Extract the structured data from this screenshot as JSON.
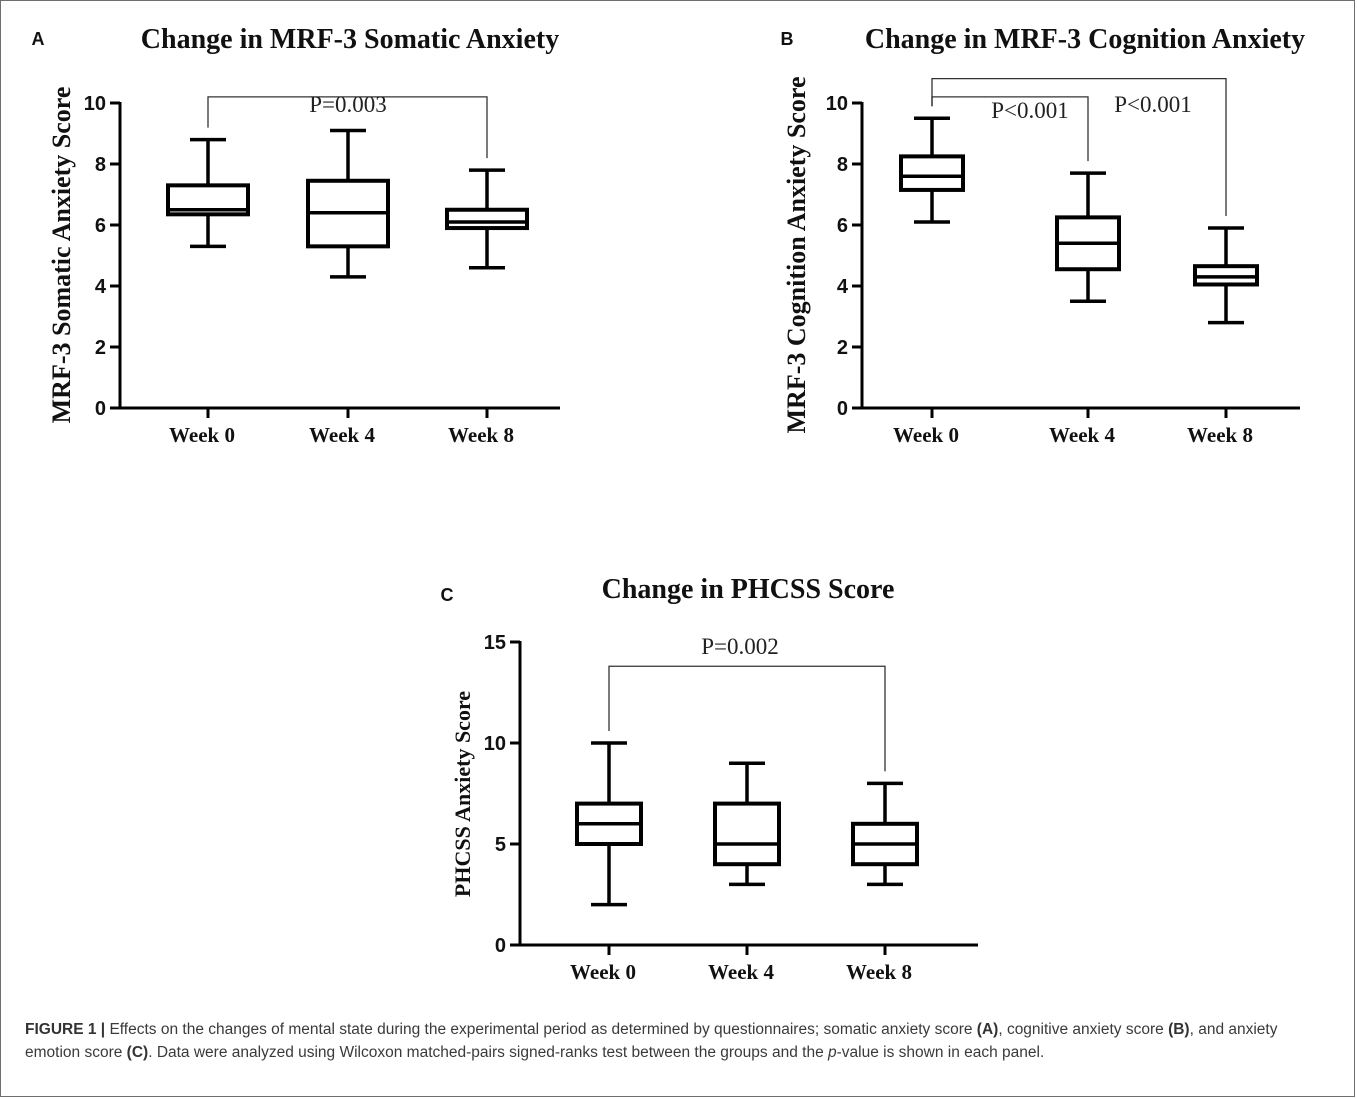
{
  "chart_data": [
    {
      "panel": "A",
      "type": "box",
      "title": "Change in MRF-3 Somatic Anxiety",
      "ylabel": "MRF-3 Somatic Anxiety Score",
      "xlabel": "",
      "ylim": [
        0,
        10
      ],
      "yticks": [
        0,
        2,
        4,
        6,
        8,
        10
      ],
      "categories": [
        "Week 0",
        "Week 4",
        "Week 8"
      ],
      "boxes": [
        {
          "min": 5.3,
          "q1": 6.35,
          "median": 6.5,
          "q3": 7.3,
          "max": 8.8
        },
        {
          "min": 4.3,
          "q1": 5.3,
          "median": 6.4,
          "q3": 7.45,
          "max": 9.1
        },
        {
          "min": 4.6,
          "q1": 5.9,
          "median": 6.1,
          "q3": 6.5,
          "max": 7.8
        }
      ],
      "annotations": [
        {
          "from": 0,
          "to": 2,
          "level": 10.2,
          "label": "P=0.003"
        }
      ]
    },
    {
      "panel": "B",
      "type": "box",
      "title": "Change in MRF-3 Cognition Anxiety",
      "ylabel": "MRF-3 Cognition Anxiety Score",
      "xlabel": "",
      "ylim": [
        0,
        10
      ],
      "yticks": [
        0,
        2,
        4,
        6,
        8,
        10
      ],
      "categories": [
        "Week 0",
        "Week 4",
        "Week 8"
      ],
      "boxes": [
        {
          "min": 6.1,
          "q1": 7.15,
          "median": 7.6,
          "q3": 8.25,
          "max": 9.5
        },
        {
          "min": 3.5,
          "q1": 4.55,
          "median": 5.4,
          "q3": 6.25,
          "max": 7.7
        },
        {
          "min": 2.8,
          "q1": 4.05,
          "median": 4.3,
          "q3": 4.65,
          "max": 5.9
        }
      ],
      "annotations": [
        {
          "from": 0,
          "to": 1,
          "level": 10.2,
          "label": "P<0.001"
        },
        {
          "from": 0,
          "to": 2,
          "level": 10.8,
          "label": "P<0.001"
        }
      ]
    },
    {
      "panel": "C",
      "type": "box",
      "title": "Change in PHCSS Score",
      "ylabel": "PHCSS Anxiety Score",
      "xlabel": "",
      "ylim": [
        0,
        15
      ],
      "yticks": [
        0,
        5,
        10,
        15
      ],
      "categories": [
        "Week 0",
        "Week 4",
        "Week 8"
      ],
      "boxes": [
        {
          "min": 2,
          "q1": 5,
          "median": 6,
          "q3": 7,
          "max": 10
        },
        {
          "min": 3,
          "q1": 4,
          "median": 5,
          "q3": 7,
          "max": 9
        },
        {
          "min": 3,
          "q1": 4,
          "median": 5,
          "q3": 6,
          "max": 8
        }
      ],
      "annotations": [
        {
          "from": 0,
          "to": 2,
          "level": 13.8,
          "label": "P=0.002"
        }
      ]
    }
  ],
  "caption": {
    "label": "FIGURE 1 |",
    "text_1": " Effects on the changes of mental state during the experimental period as determined by questionnaires; somatic anxiety score ",
    "ref_a": "(A)",
    "text_2": ", cognitive anxiety score ",
    "ref_b": "(B)",
    "text_3": ", and anxiety emotion score ",
    "ref_c": "(C)",
    "text_4": ". Data were analyzed using Wilcoxon matched-pairs signed-ranks test between the groups and the ",
    "p_italic": "p",
    "text_5": "-value is shown in each panel."
  },
  "colors": {
    "ink": "#000000",
    "caption_text": "#3a3a3a",
    "frame": "#6e6e6e"
  }
}
